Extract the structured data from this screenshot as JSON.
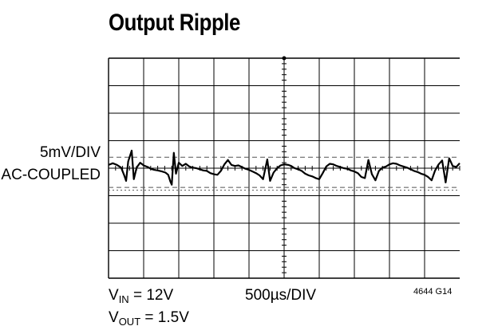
{
  "chart_data": {
    "type": "line",
    "title": "Output Ripple",
    "y_scale_label": "5mV/DIV",
    "coupling_label": "AC-COUPLED",
    "x_scale_label": "500µs/DIV",
    "annotations": {
      "vin_symbol": "V",
      "vin_subscript": "IN",
      "vin_value": " = 12V",
      "vout_symbol": "V",
      "vout_subscript": "OUT",
      "vout_value": " = 1.5V"
    },
    "figure_id": "4644 G14",
    "grid": true,
    "divisions": {
      "x": 10,
      "y": 8
    },
    "xlim": [
      0,
      5000
    ],
    "ylim": [
      -20,
      20
    ],
    "x_units": "µs",
    "y_units": "mV",
    "colors": {
      "trace": "#000000",
      "grid": "#000000",
      "dashed": "#555555"
    },
    "series": [
      {
        "x": [
          0,
          60,
          120,
          180,
          220,
          250,
          280,
          330,
          360,
          400,
          450,
          500,
          560,
          600,
          650,
          700,
          760,
          810,
          850,
          880,
          900,
          930,
          960,
          1000,
          1050,
          1100,
          1150,
          1200,
          1250,
          1300,
          1350,
          1400,
          1450,
          1500,
          1550,
          1600,
          1650,
          1700,
          1750,
          1800,
          1850,
          1900,
          1950,
          2000,
          2050,
          2100,
          2150,
          2200,
          2260,
          2300,
          2350,
          2400,
          2450,
          2500,
          2560,
          2600,
          2650,
          2700,
          2750,
          2800,
          2850,
          2900,
          2950,
          3000,
          3050,
          3100,
          3150,
          3200,
          3250,
          3300,
          3350,
          3400,
          3450,
          3500,
          3550,
          3600,
          3650,
          3700,
          3750,
          3800,
          3850,
          3900,
          3950,
          4000,
          4050,
          4100,
          4150,
          4200,
          4250,
          4300,
          4350,
          4400,
          4450,
          4500,
          4550,
          4600,
          4650,
          4700,
          4750,
          4800,
          4850,
          4900,
          4950,
          5000
        ],
        "y": [
          0.6,
          0.9,
          0.6,
          0.1,
          -1.2,
          -2.3,
          1.2,
          3.2,
          -2.0,
          0.1,
          1.0,
          0.5,
          0.2,
          -0.1,
          -0.3,
          -0.4,
          -0.6,
          -0.8,
          -1.2,
          -2.4,
          -3.0,
          2.8,
          -1.0,
          1.0,
          0.4,
          0.8,
          0.3,
          0.1,
          0.0,
          -0.2,
          -0.4,
          -0.5,
          -0.9,
          -1.1,
          -1.2,
          -0.5,
          0.7,
          1.5,
          0.6,
          0.4,
          0.5,
          0.2,
          -0.1,
          -0.3,
          -0.6,
          -0.9,
          -1.3,
          -2.0,
          1.6,
          -2.3,
          -0.8,
          0.0,
          0.5,
          0.7,
          0.6,
          0.4,
          0.0,
          -0.2,
          -0.5,
          -1.0,
          -1.3,
          -1.5,
          -1.8,
          -2.0,
          -0.9,
          0.3,
          0.8,
          0.7,
          0.4,
          0.2,
          0.0,
          -0.1,
          -0.4,
          -0.6,
          -0.9,
          -1.6,
          -1.8,
          1.5,
          -1.1,
          -2.2,
          -0.5,
          0.1,
          0.3,
          0.7,
          0.9,
          0.8,
          0.5,
          0.3,
          0.1,
          -0.2,
          -0.5,
          -0.7,
          -1.0,
          -1.2,
          -1.6,
          -2.2,
          -0.4,
          0.7,
          1.4,
          -2.6,
          1.8,
          0.4,
          0.2,
          0.9
        ]
      }
    ],
    "reference_lines": [
      {
        "style": "dashed",
        "y": 2.0
      },
      {
        "style": "dashed",
        "y": -3.5
      },
      {
        "style": "dotted",
        "y": -4.0
      }
    ]
  }
}
